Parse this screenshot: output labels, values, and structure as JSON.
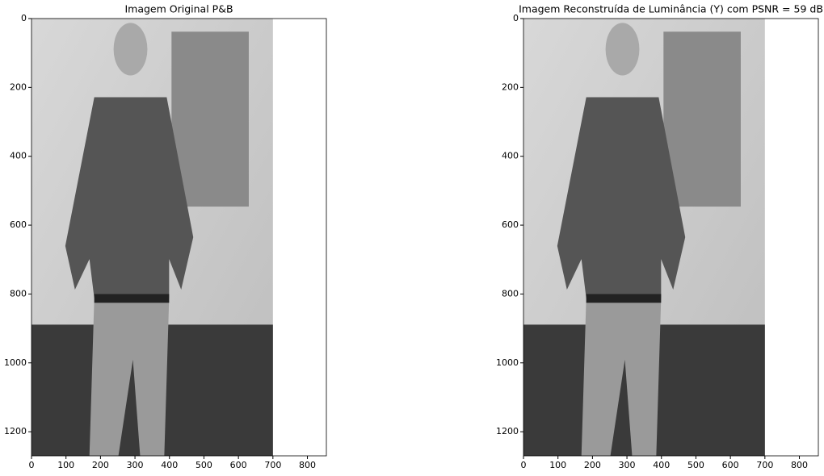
{
  "chart_data": [
    {
      "type": "image",
      "title": "Imagem Original P&B",
      "extent": {
        "x": [
          0,
          700
        ],
        "y": [
          1270,
          0
        ]
      },
      "xlim": [
        0,
        855
      ],
      "ylim": [
        1270,
        0
      ],
      "xticks": [
        0,
        100,
        200,
        300,
        400,
        500,
        600,
        700,
        800
      ],
      "yticks": [
        0,
        200,
        400,
        600,
        800,
        1000,
        1200
      ]
    },
    {
      "type": "image",
      "title": "Imagem Reconstruída de Luminância (Y) com PSNR = 59 dB",
      "extent": {
        "x": [
          0,
          700
        ],
        "y": [
          1270,
          0
        ]
      },
      "xlim": [
        0,
        855
      ],
      "ylim": [
        1270,
        0
      ],
      "xticks": [
        0,
        100,
        200,
        300,
        400,
        500,
        600,
        700,
        800
      ],
      "yticks": [
        0,
        200,
        400,
        600,
        800,
        1000,
        1200
      ]
    }
  ]
}
